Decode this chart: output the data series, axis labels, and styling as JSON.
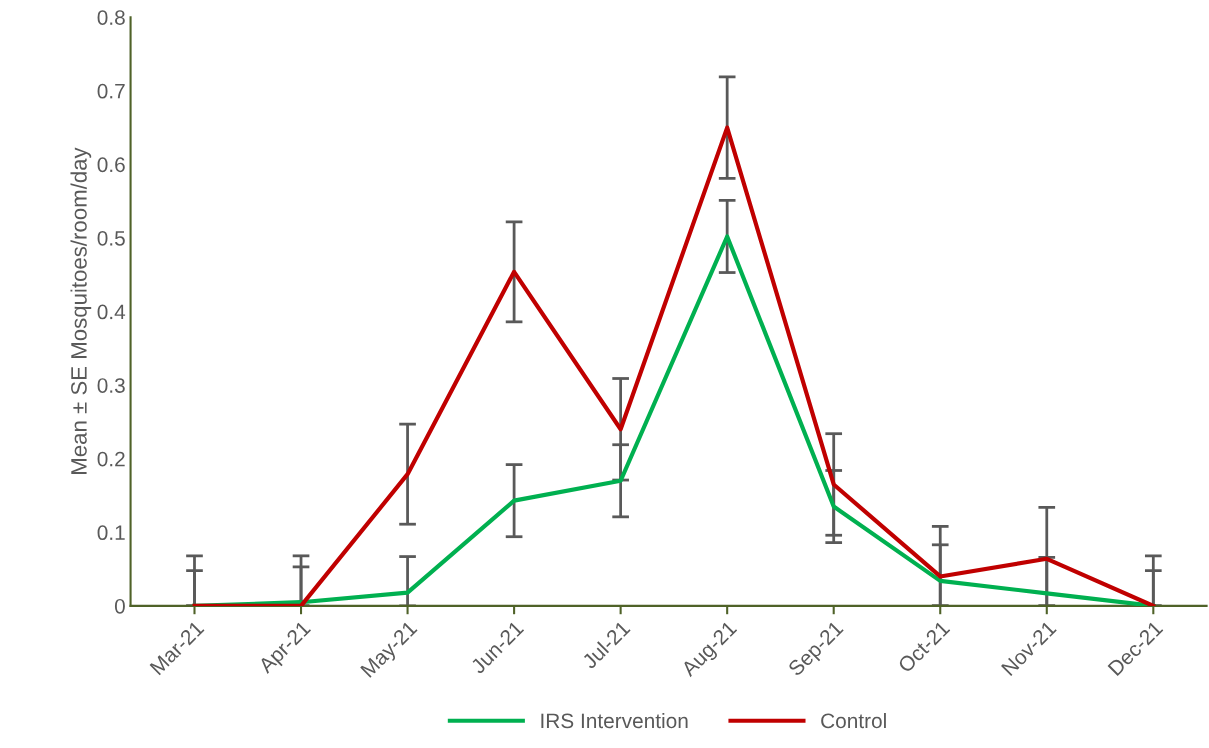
{
  "chart_data": {
    "type": "line",
    "ylabel": "Mean ± SE Mosquitoes/room/day",
    "categories": [
      "Mar-21",
      "Apr-21",
      "May-21",
      "Jun-21",
      "Jul-21",
      "Aug-21",
      "Sep-21",
      "Oct-21",
      "Nov-21",
      "Dec-21"
    ],
    "series": [
      {
        "name": "IRS Intervention",
        "color": "#00b050",
        "values": [
          0,
          0.005,
          0.018,
          0.143,
          0.17,
          0.502,
          0.135,
          0.034,
          0.017,
          0
        ],
        "errors": [
          [
            0,
            0.048
          ],
          [
            0,
            0.053
          ],
          [
            0,
            0.067
          ],
          0.049,
          0.049,
          0.049,
          0.049,
          [
            0,
            0.083
          ],
          [
            0,
            0.066
          ],
          [
            0,
            0.048
          ]
        ]
      },
      {
        "name": "Control",
        "color": "#c00000",
        "values": [
          0,
          0,
          0.179,
          0.454,
          0.24,
          0.65,
          0.165,
          0.04,
          0.064,
          0
        ],
        "errors": [
          [
            0,
            0.068
          ],
          [
            0,
            0.068
          ],
          0.068,
          0.068,
          0.069,
          0.069,
          0.069,
          [
            0,
            0.108
          ],
          [
            0,
            0.134
          ],
          [
            0,
            0.068
          ]
        ]
      }
    ],
    "ylim": [
      0,
      0.8
    ],
    "yticks": [
      0,
      0.1,
      0.2,
      0.3,
      0.4,
      0.5,
      0.6,
      0.7,
      0.8
    ],
    "grid": false,
    "legend": "bottom",
    "marker": "none",
    "line_style": "solid"
  }
}
